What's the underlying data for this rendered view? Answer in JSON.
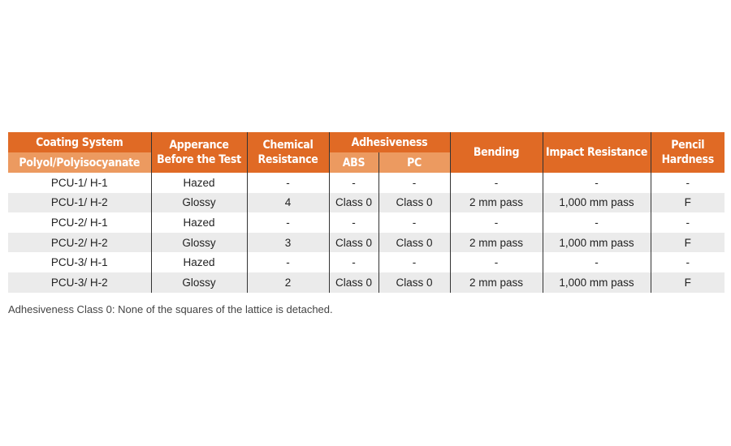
{
  "table": {
    "headers": {
      "coating_system": "Coating System",
      "polyol": "Polyol/Polyisocyanate",
      "appearance": "Apperance Before the Test",
      "chemical": "Chemical Resistance",
      "adhesiveness": "Adhesiveness",
      "abs": "ABS",
      "pc": "PC",
      "bending": "Bending",
      "impact": "Impact Resistance",
      "pencil": "Pencil Hardness"
    },
    "rows": [
      [
        "PCU-1/ H-1",
        "Hazed",
        "-",
        "-",
        "-",
        "-",
        "-",
        "-"
      ],
      [
        "PCU-1/ H-2",
        "Glossy",
        "4",
        "Class 0",
        "Class 0",
        "2 mm pass",
        "1,000 mm pass",
        "F"
      ],
      [
        "PCU-2/ H-1",
        "Hazed",
        "-",
        "-",
        "-",
        "-",
        "-",
        "-"
      ],
      [
        "PCU-2/ H-2",
        "Glossy",
        "3",
        "Class 0",
        "Class 0",
        "2 mm pass",
        "1,000 mm pass",
        "F"
      ],
      [
        "PCU-3/ H-1",
        "Hazed",
        "-",
        "-",
        "-",
        "-",
        "-",
        "-"
      ],
      [
        "PCU-3/ H-2",
        "Glossy",
        "2",
        "Class 0",
        "Class 0",
        "2 mm pass",
        "1,000 mm pass",
        "F"
      ]
    ],
    "colors": {
      "header_dark": "#e06a25",
      "header_light": "#ec9a60",
      "row_alt": "#ebebeb"
    }
  },
  "caption": "Adhesiveness Class 0: None of the squares of the lattice is detached."
}
